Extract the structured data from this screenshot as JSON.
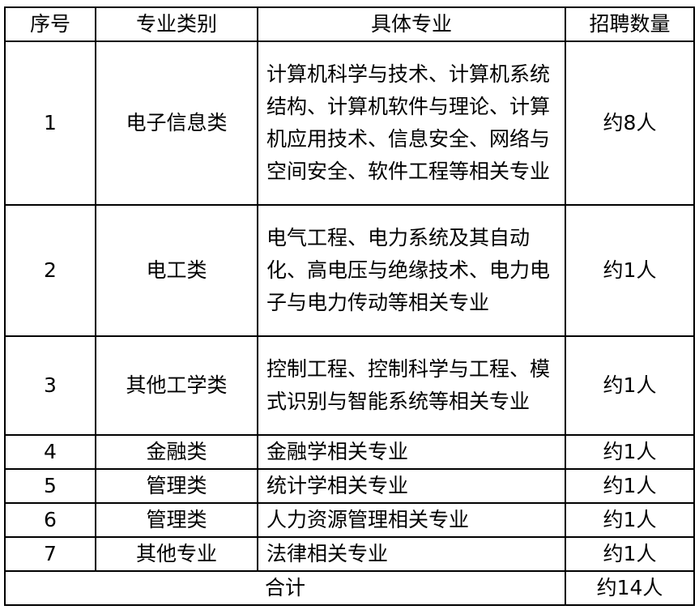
{
  "headers": [
    "序号",
    "专业类别",
    "具体专业",
    "招聘数量"
  ],
  "rows": [
    {
      "no": "1",
      "category": "电子信息类",
      "majors": "计算机科学与技术、计算机系统结构、计算机软件与理论、计算机应用技术、信息安全、网络与空间安全、软件工程等相关专业",
      "count": "约8人"
    },
    {
      "no": "2",
      "category": "电工类",
      "majors": "电气工程、电力系统及其自动化、高电压与绝缘技术、电力电子与电力传动等相关专业",
      "count": "约1人"
    },
    {
      "no": "3",
      "category": "其他工学类",
      "majors": "控制工程、控制科学与工程、模式识别与智能系统等相关专业",
      "count": "约1人"
    },
    {
      "no": "4",
      "category": "金融类",
      "majors": "金融学相关专业",
      "count": "约1人"
    },
    {
      "no": "5",
      "category": "管理类",
      "majors": "统计学相关专业",
      "count": "约1人"
    },
    {
      "no": "6",
      "category": "管理类",
      "majors": "人力资源管理相关专业",
      "count": "约1人"
    },
    {
      "no": "7",
      "category": "其他专业",
      "majors": "法律相关专业",
      "count": "约1人"
    }
  ],
  "total": {
    "label": "合计",
    "count": "约14人"
  }
}
